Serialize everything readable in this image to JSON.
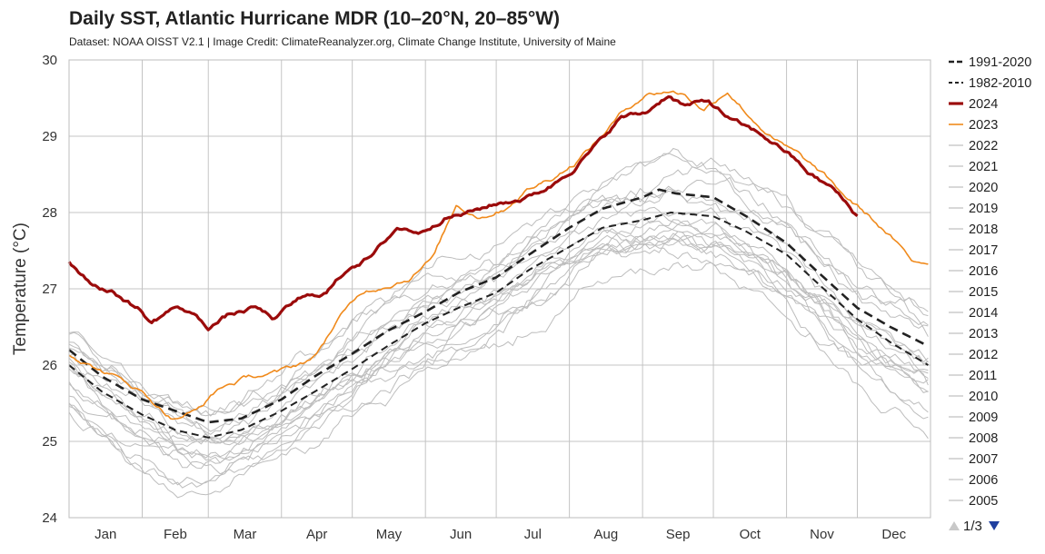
{
  "chart_data": {
    "type": "line",
    "title": "Daily SST, Atlantic Hurricane MDR (10–20°N, 20–85°W)",
    "subtitle": "Dataset: NOAA OISST V2.1 | Image Credit: ClimateReanalyzer.org, Climate Change Institute, University of Maine",
    "ylabel": "Temperature (°C)",
    "xlabel": "",
    "ylim": [
      24,
      30
    ],
    "yticks": [
      "24",
      "25",
      "26",
      "27",
      "28",
      "29",
      "30"
    ],
    "months": [
      "Jan",
      "Feb",
      "Mar",
      "Apr",
      "May",
      "Jun",
      "Jul",
      "Aug",
      "Sep",
      "Oct",
      "Nov",
      "Dec"
    ],
    "series": [
      {
        "name": "1991-2020",
        "color": "#222222",
        "style": "dashed-thick",
        "points": [
          [
            1,
            26.2
          ],
          [
            15,
            25.85
          ],
          [
            32,
            25.55
          ],
          [
            46,
            25.4
          ],
          [
            60,
            25.25
          ],
          [
            74,
            25.3
          ],
          [
            91,
            25.55
          ],
          [
            105,
            25.85
          ],
          [
            121,
            26.15
          ],
          [
            136,
            26.45
          ],
          [
            152,
            26.7
          ],
          [
            166,
            26.95
          ],
          [
            182,
            27.15
          ],
          [
            196,
            27.45
          ],
          [
            213,
            27.8
          ],
          [
            227,
            28.05
          ],
          [
            244,
            28.2
          ],
          [
            251,
            28.3
          ],
          [
            258,
            28.25
          ],
          [
            274,
            28.2
          ],
          [
            288,
            27.95
          ],
          [
            305,
            27.6
          ],
          [
            319,
            27.2
          ],
          [
            335,
            26.75
          ],
          [
            349,
            26.5
          ],
          [
            365,
            26.25
          ]
        ]
      },
      {
        "name": "1982-2010",
        "color": "#222222",
        "style": "dashed-thin",
        "points": [
          [
            1,
            26.0
          ],
          [
            15,
            25.65
          ],
          [
            32,
            25.35
          ],
          [
            46,
            25.15
          ],
          [
            60,
            25.05
          ],
          [
            74,
            25.15
          ],
          [
            91,
            25.4
          ],
          [
            105,
            25.65
          ],
          [
            121,
            25.95
          ],
          [
            136,
            26.25
          ],
          [
            152,
            26.55
          ],
          [
            166,
            26.75
          ],
          [
            182,
            26.95
          ],
          [
            196,
            27.25
          ],
          [
            213,
            27.55
          ],
          [
            227,
            27.8
          ],
          [
            244,
            27.9
          ],
          [
            256,
            28.0
          ],
          [
            274,
            27.95
          ],
          [
            288,
            27.75
          ],
          [
            305,
            27.45
          ],
          [
            319,
            27.05
          ],
          [
            335,
            26.6
          ],
          [
            349,
            26.3
          ],
          [
            365,
            26.0
          ]
        ]
      },
      {
        "name": "2024",
        "color": "#9b0b0b",
        "style": "solid-thick",
        "points": [
          [
            1,
            27.35
          ],
          [
            10,
            27.1
          ],
          [
            20,
            26.95
          ],
          [
            30,
            26.75
          ],
          [
            36,
            26.55
          ],
          [
            45,
            26.75
          ],
          [
            52,
            26.7
          ],
          [
            60,
            26.5
          ],
          [
            68,
            26.65
          ],
          [
            80,
            26.75
          ],
          [
            88,
            26.6
          ],
          [
            98,
            26.85
          ],
          [
            110,
            26.95
          ],
          [
            120,
            27.3
          ],
          [
            130,
            27.45
          ],
          [
            140,
            27.8
          ],
          [
            150,
            27.75
          ],
          [
            160,
            27.95
          ],
          [
            170,
            28.0
          ],
          [
            180,
            28.1
          ],
          [
            195,
            28.2
          ],
          [
            205,
            28.35
          ],
          [
            215,
            28.6
          ],
          [
            225,
            28.9
          ],
          [
            235,
            29.25
          ],
          [
            245,
            29.3
          ],
          [
            255,
            29.55
          ],
          [
            262,
            29.4
          ],
          [
            272,
            29.45
          ],
          [
            282,
            29.2
          ],
          [
            295,
            29.0
          ],
          [
            305,
            28.8
          ],
          [
            315,
            28.5
          ],
          [
            325,
            28.3
          ],
          [
            335,
            27.95
          ]
        ]
      },
      {
        "name": "2023",
        "color": "#f08a1c",
        "style": "solid",
        "points": [
          [
            1,
            26.15
          ],
          [
            10,
            26.0
          ],
          [
            20,
            25.85
          ],
          [
            30,
            25.7
          ],
          [
            45,
            25.3
          ],
          [
            55,
            25.4
          ],
          [
            65,
            25.7
          ],
          [
            78,
            25.85
          ],
          [
            90,
            25.9
          ],
          [
            105,
            26.1
          ],
          [
            115,
            26.6
          ],
          [
            125,
            26.95
          ],
          [
            135,
            27.05
          ],
          [
            145,
            27.15
          ],
          [
            155,
            27.4
          ],
          [
            165,
            28.1
          ],
          [
            175,
            27.95
          ],
          [
            185,
            28.05
          ],
          [
            195,
            28.3
          ],
          [
            205,
            28.45
          ],
          [
            215,
            28.65
          ],
          [
            225,
            28.95
          ],
          [
            235,
            29.3
          ],
          [
            245,
            29.55
          ],
          [
            255,
            29.6
          ],
          [
            262,
            29.55
          ],
          [
            270,
            29.35
          ],
          [
            280,
            29.6
          ],
          [
            290,
            29.25
          ],
          [
            300,
            28.95
          ],
          [
            310,
            28.75
          ],
          [
            320,
            28.5
          ],
          [
            330,
            28.2
          ],
          [
            340,
            27.95
          ],
          [
            350,
            27.65
          ],
          [
            358,
            27.35
          ],
          [
            365,
            27.35
          ]
        ]
      }
    ],
    "background_years": [
      "2022",
      "2021",
      "2020",
      "2019",
      "2018",
      "2017",
      "2016",
      "2015",
      "2014",
      "2013",
      "2012",
      "2011",
      "2010",
      "2009",
      "2008",
      "2007",
      "2006",
      "2005"
    ],
    "background_color": "#bdbdbd",
    "legend_position": "right",
    "pager": {
      "label": "1/3",
      "up_color": "#c8c8c8",
      "down_color": "#1f3f9f"
    }
  }
}
